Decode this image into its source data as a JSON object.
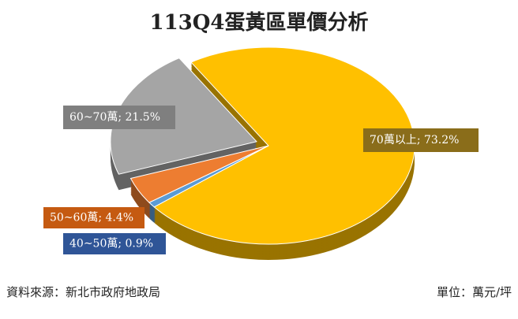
{
  "chart_data": {
    "type": "pie",
    "title": "113Q4蛋黃區單價分析",
    "categories": [
      "70萬以上",
      "40~50萬",
      "50~60萬",
      "60~70萬"
    ],
    "values": [
      73.2,
      0.9,
      4.4,
      21.5
    ],
    "value_labels": [
      "; 73.2%",
      "; 0.9%",
      "; 4.4%",
      "; 21.5%"
    ],
    "colors": [
      "#ffc000",
      "#5b9bd5",
      "#ed7d31",
      "#a5a5a5"
    ],
    "source": "資料來源：新北市政府地政局",
    "unit": "單位：萬元/坪"
  }
}
